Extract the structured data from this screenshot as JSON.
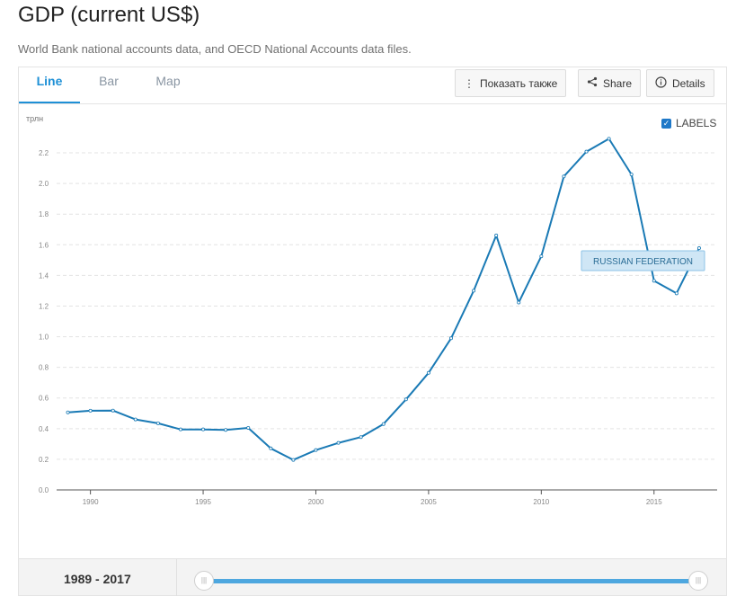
{
  "page": {
    "title": "GDP (current US$)",
    "subtitle": "World Bank national accounts data, and OECD National Accounts data files."
  },
  "tabs": [
    {
      "label": "Line",
      "active": true
    },
    {
      "label": "Bar",
      "active": false
    },
    {
      "label": "Map",
      "active": false
    }
  ],
  "toolbar": {
    "show_also": "Показать также",
    "share": "Share",
    "details": "Details"
  },
  "labels_toggle": {
    "label": "LABELS",
    "checked": true
  },
  "range": {
    "label": "1989 - 2017"
  },
  "colors": {
    "accent": "#1e90d6",
    "series": "#1a7ab5",
    "tag_bg": "#cfe6f5",
    "grid": "#e3e3e3"
  },
  "chart_data": {
    "type": "line",
    "ylabel": "трлн",
    "ylim": [
      0,
      2.3
    ],
    "xlim": [
      1988.5,
      2017.8
    ],
    "yticks": [
      "0.0",
      "0.2",
      "0.4",
      "0.6",
      "0.8",
      "1.0",
      "1.2",
      "1.4",
      "1.6",
      "1.8",
      "2.0",
      "2.2"
    ],
    "xticks": [
      "1990",
      "1995",
      "2000",
      "2005",
      "2010",
      "2015"
    ],
    "grid": true,
    "series": [
      {
        "name": "RUSSIAN FEDERATION",
        "x": [
          1989,
          1990,
          1991,
          1992,
          1993,
          1994,
          1995,
          1996,
          1997,
          1998,
          1999,
          2000,
          2001,
          2002,
          2003,
          2004,
          2005,
          2006,
          2007,
          2008,
          2009,
          2010,
          2011,
          2012,
          2013,
          2014,
          2015,
          2016,
          2017
        ],
        "values": [
          0.506,
          0.517,
          0.518,
          0.46,
          0.435,
          0.395,
          0.395,
          0.392,
          0.405,
          0.271,
          0.196,
          0.26,
          0.307,
          0.345,
          0.43,
          0.591,
          0.764,
          0.99,
          1.3,
          1.661,
          1.223,
          1.525,
          2.046,
          2.208,
          2.292,
          2.059,
          1.365,
          1.283,
          1.578
        ]
      }
    ]
  }
}
